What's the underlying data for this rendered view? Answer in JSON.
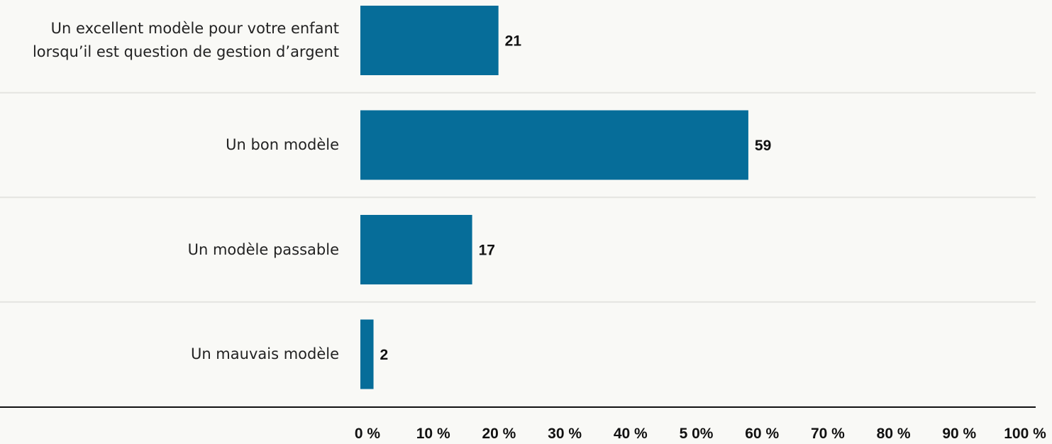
{
  "chart_data": {
    "type": "barh",
    "categories": [
      "Un excellent modèle pour votre enfant lorsqu’il est question de gestion d’argent",
      "Un bon modèle",
      "Un modèle passable",
      "Un mauvais modèle"
    ],
    "values": [
      21,
      59,
      17,
      2
    ],
    "color": "#066d99",
    "xlim": [
      0,
      100
    ],
    "xticks": [
      {
        "value": 0,
        "label": "0 %"
      },
      {
        "value": 10,
        "label": "10 %"
      },
      {
        "value": 20,
        "label": "20 %"
      },
      {
        "value": 30,
        "label": "30 %"
      },
      {
        "value": 40,
        "label": "40 %"
      },
      {
        "value": 50,
        "label": "5 0%"
      },
      {
        "value": 60,
        "label": "60 %"
      },
      {
        "value": 70,
        "label": "70 %"
      },
      {
        "value": 80,
        "label": "80 %"
      },
      {
        "value": 90,
        "label": "90 %"
      },
      {
        "value": 100,
        "label": "100 %"
      }
    ]
  }
}
